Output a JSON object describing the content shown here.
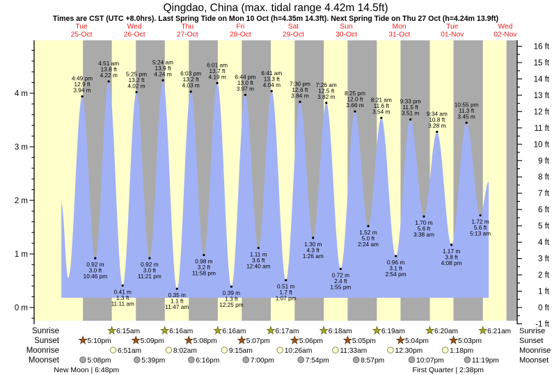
{
  "title": "Qingdao, China (max. tidal range 4.42m 14.5ft)",
  "subtitle": "Times are CST (UTC +8.0hrs). Last Spring Tide on Mon 10 Oct (h=4.35m 14.3ft). Next Spring Tide on Thu 27 Oct (h=4.24m 13.9ft)",
  "days": [
    {
      "name": "Tue",
      "date": "25-Oct"
    },
    {
      "name": "Wed",
      "date": "26-Oct"
    },
    {
      "name": "Thu",
      "date": "27-Oct"
    },
    {
      "name": "Fri",
      "date": "28-Oct"
    },
    {
      "name": "Sat",
      "date": "29-Oct"
    },
    {
      "name": "Sun",
      "date": "30-Oct"
    },
    {
      "name": "Mon",
      "date": "31-Oct"
    },
    {
      "name": "Tue",
      "date": "01-Nov"
    },
    {
      "name": "Wed",
      "date": "02-Nov"
    }
  ],
  "axes": {
    "left_ticks": [
      {
        "v": 0,
        "label": "0 m"
      },
      {
        "v": 1,
        "label": "1 m"
      },
      {
        "v": 2,
        "label": "2 m"
      },
      {
        "v": 3,
        "label": "3 m"
      },
      {
        "v": 4,
        "label": "4 m"
      }
    ],
    "right_ticks": [
      {
        "v": -1,
        "label": "-1 ft"
      },
      {
        "v": 0,
        "label": "0 ft"
      },
      {
        "v": 1,
        "label": "1 ft"
      },
      {
        "v": 2,
        "label": "2 ft"
      },
      {
        "v": 3,
        "label": "3 ft"
      },
      {
        "v": 4,
        "label": "4 ft"
      },
      {
        "v": 5,
        "label": "5 ft"
      },
      {
        "v": 6,
        "label": "6 ft"
      },
      {
        "v": 7,
        "label": "7 ft"
      },
      {
        "v": 8,
        "label": "8 ft"
      },
      {
        "v": 9,
        "label": "9 ft"
      },
      {
        "v": 10,
        "label": "10 ft"
      },
      {
        "v": 11,
        "label": "11 ft"
      },
      {
        "v": 12,
        "label": "12 ft"
      },
      {
        "v": 13,
        "label": "13 ft"
      },
      {
        "v": 14,
        "label": "14 ft"
      },
      {
        "v": 15,
        "label": "15 ft"
      },
      {
        "v": 16,
        "label": "16 ft"
      }
    ]
  },
  "chart_data": {
    "type": "area",
    "x_axis": "time (CST), hours since Tue 25 Oct 00:00",
    "x_range_hours": [
      7.4,
      201.0
    ],
    "ylim_m": [
      -0.3,
      5.0
    ],
    "ylim_ft": [
      -1,
      16
    ],
    "max_tidal_range": "4.42m 14.5ft",
    "tide_events": [
      {
        "t": 7.4,
        "h": 1.95,
        "edge": true
      },
      {
        "t": 10.5,
        "h": 0.55,
        "type": "low",
        "unlabeled": true
      },
      {
        "t": 16.82,
        "h": 3.94,
        "type": "high",
        "time": "4:49 pm",
        "ft": "12.9 ft",
        "m": "3.94 m"
      },
      {
        "t": 22.77,
        "h": 0.92,
        "type": "low",
        "time": "10:46 pm",
        "ft": "3.0 ft",
        "m": "0.92 m"
      },
      {
        "t": 28.85,
        "h": 4.22,
        "type": "high",
        "time": "4:51 am",
        "ft": "13.8 ft",
        "m": "4.22 m"
      },
      {
        "t": 35.18,
        "h": 0.41,
        "type": "low",
        "time": "11:11 am",
        "ft": "1.3 ft",
        "m": "0.41 m"
      },
      {
        "t": 41.42,
        "h": 4.02,
        "type": "high",
        "time": "5:25 pm",
        "ft": "13.2 ft",
        "m": "4.02 m"
      },
      {
        "t": 47.35,
        "h": 0.92,
        "type": "low",
        "time": "11:21 pm",
        "ft": "3.0 ft",
        "m": "0.92 m"
      },
      {
        "t": 53.4,
        "h": 4.24,
        "type": "high",
        "time": "5:24 am",
        "ft": "13.9 ft",
        "m": "4.24 m"
      },
      {
        "t": 59.78,
        "h": 0.35,
        "type": "low",
        "time": "11:47 am",
        "ft": "1.1 ft",
        "m": "0.35 m"
      },
      {
        "t": 66.05,
        "h": 4.03,
        "type": "high",
        "time": "6:03 pm",
        "ft": "13.2 ft",
        "m": "4.03 m"
      },
      {
        "t": 71.97,
        "h": 0.98,
        "type": "low",
        "time": "11:58 pm",
        "ft": "3.2 ft",
        "m": "0.98 m"
      },
      {
        "t": 78.02,
        "h": 4.19,
        "type": "high",
        "time": "6:01 am",
        "ft": "13.7 ft",
        "m": "4.19 m"
      },
      {
        "t": 84.42,
        "h": 0.39,
        "type": "low",
        "time": "12:25 pm",
        "ft": "1.3 ft",
        "m": "0.39 m"
      },
      {
        "t": 90.73,
        "h": 3.97,
        "type": "high",
        "time": "6:44 pm",
        "ft": "13.0 ft",
        "m": "3.97 m"
      },
      {
        "t": 96.67,
        "h": 1.11,
        "type": "low",
        "time": "12:40 am",
        "ft": "3.6 ft",
        "m": "1.11 m"
      },
      {
        "t": 102.68,
        "h": 4.04,
        "type": "high",
        "time": "6:41 am",
        "ft": "13.3 ft",
        "m": "4.04 m"
      },
      {
        "t": 109.12,
        "h": 0.51,
        "type": "low",
        "time": "1:07 pm",
        "ft": "1.7 ft",
        "m": "0.51 m"
      },
      {
        "t": 115.5,
        "h": 3.84,
        "type": "high",
        "time": "7:30 pm",
        "ft": "12.6 ft",
        "m": "3.84 m"
      },
      {
        "t": 121.43,
        "h": 1.3,
        "type": "low",
        "time": "1:26 am",
        "ft": "4.3 ft",
        "m": "1.30 m"
      },
      {
        "t": 127.43,
        "h": 3.82,
        "type": "high",
        "time": "7:26 am",
        "ft": "12.5 ft",
        "m": "3.82 m"
      },
      {
        "t": 133.92,
        "h": 0.72,
        "type": "low",
        "time": "1:55 pm",
        "ft": "2.4 ft",
        "m": "0.72 m"
      },
      {
        "t": 140.42,
        "h": 3.66,
        "type": "high",
        "time": "8:25 pm",
        "ft": "12.0 ft",
        "m": "3.66 m"
      },
      {
        "t": 146.4,
        "h": 1.52,
        "type": "low",
        "time": "2:24 am",
        "ft": "5.0 ft",
        "m": "1.52 m"
      },
      {
        "t": 152.35,
        "h": 3.54,
        "type": "high",
        "time": "8:21 am",
        "ft": "11.6 ft",
        "m": "3.54 m"
      },
      {
        "t": 158.9,
        "h": 0.96,
        "type": "low",
        "time": "2:54 pm",
        "ft": "3.1 ft",
        "m": "0.96 m"
      },
      {
        "t": 165.55,
        "h": 3.51,
        "type": "high",
        "time": "9:33 pm",
        "ft": "11.5 ft",
        "m": "3.51 m"
      },
      {
        "t": 171.63,
        "h": 1.7,
        "type": "low",
        "time": "3:38 am",
        "ft": "5.6 ft",
        "m": "1.70 m"
      },
      {
        "t": 177.57,
        "h": 3.28,
        "type": "high",
        "time": "9:34 am",
        "ft": "10.8 ft",
        "m": "3.28 m"
      },
      {
        "t": 184.13,
        "h": 1.17,
        "type": "low",
        "time": "4:08 pm",
        "ft": "3.8 ft",
        "m": "1.17 m"
      },
      {
        "t": 190.92,
        "h": 3.45,
        "type": "high",
        "time": "10:55 pm",
        "ft": "11.3 ft",
        "m": "3.45 m"
      },
      {
        "t": 197.22,
        "h": 1.72,
        "type": "low",
        "time": "5:13 am",
        "ft": "5.6 ft",
        "m": "1.72 m"
      },
      {
        "t": 201.0,
        "h": 2.35,
        "edge": true
      }
    ],
    "night_bands": [
      [
        17.17,
        30.25
      ],
      [
        41.15,
        54.27
      ],
      [
        65.13,
        78.27
      ],
      [
        89.12,
        102.28
      ],
      [
        113.1,
        126.3
      ],
      [
        137.08,
        150.32
      ],
      [
        161.07,
        174.33
      ],
      [
        185.05,
        198.35
      ],
      [
        209.05,
        214.0
      ]
    ]
  },
  "almanac": {
    "rows": [
      {
        "key": "sunrise",
        "label": "Sunrise",
        "icon": "star",
        "fill": "#AAAA22",
        "stroke": "#6E6E1E",
        "events": [
          {
            "t": 30.25,
            "time": "6:15am"
          },
          {
            "t": 54.27,
            "time": "6:16am"
          },
          {
            "t": 78.27,
            "time": "6:16am"
          },
          {
            "t": 102.28,
            "time": "6:17am"
          },
          {
            "t": 126.3,
            "time": "6:18am"
          },
          {
            "t": 150.32,
            "time": "6:19am"
          },
          {
            "t": 174.33,
            "time": "6:20am"
          },
          {
            "t": 198.35,
            "time": "6:21am"
          }
        ]
      },
      {
        "key": "sunset",
        "label": "Sunset",
        "icon": "star",
        "fill": "#A15A21",
        "stroke": "#663610",
        "events": [
          {
            "t": 17.17,
            "time": "5:10pm"
          },
          {
            "t": 41.15,
            "time": "5:09pm"
          },
          {
            "t": 65.13,
            "time": "5:08pm"
          },
          {
            "t": 89.12,
            "time": "5:07pm"
          },
          {
            "t": 113.1,
            "time": "5:06pm"
          },
          {
            "t": 137.08,
            "time": "5:05pm"
          },
          {
            "t": 161.07,
            "time": "5:04pm"
          },
          {
            "t": 185.05,
            "time": "5:03pm"
          }
        ]
      },
      {
        "key": "moonrise",
        "label": "Moonrise",
        "icon": "circle",
        "fill": "#FFFFD6",
        "stroke": "#8F8F5F",
        "events": [
          {
            "t": 30.85,
            "time": "6:51am"
          },
          {
            "t": 56.03,
            "time": "8:02am"
          },
          {
            "t": 81.25,
            "time": "9:15am"
          },
          {
            "t": 106.43,
            "time": "10:26am"
          },
          {
            "t": 131.55,
            "time": "11:33am"
          },
          {
            "t": 156.5,
            "time": "12:30pm"
          },
          {
            "t": 181.3,
            "time": "1:18pm"
          }
        ]
      },
      {
        "key": "moonset",
        "label": "Moonset",
        "icon": "circle",
        "fill": "#A9A9A1",
        "stroke": "#6F6F6F",
        "events": [
          {
            "t": 17.13,
            "time": "5:08pm"
          },
          {
            "t": 41.65,
            "time": "5:39pm"
          },
          {
            "t": 66.27,
            "time": "6:16pm"
          },
          {
            "t": 91.0,
            "time": "7:00pm"
          },
          {
            "t": 115.9,
            "time": "7:54pm"
          },
          {
            "t": 140.95,
            "time": "8:57pm"
          },
          {
            "t": 166.12,
            "time": "10:07pm"
          },
          {
            "t": 191.32,
            "time": "11:19pm"
          }
        ]
      }
    ],
    "phases": [
      {
        "t": 18.8,
        "text": "New Moon | 6:48pm"
      },
      {
        "t": 182.63,
        "text": "First Quarter | 2:38pm"
      }
    ]
  },
  "colors": {
    "day_bg": "#FFFFCC",
    "night_bg": "#AAAAAA",
    "water": "#A1B1F5",
    "day_label": "#EE2020",
    "axis": "#000000",
    "text": "#000000"
  }
}
